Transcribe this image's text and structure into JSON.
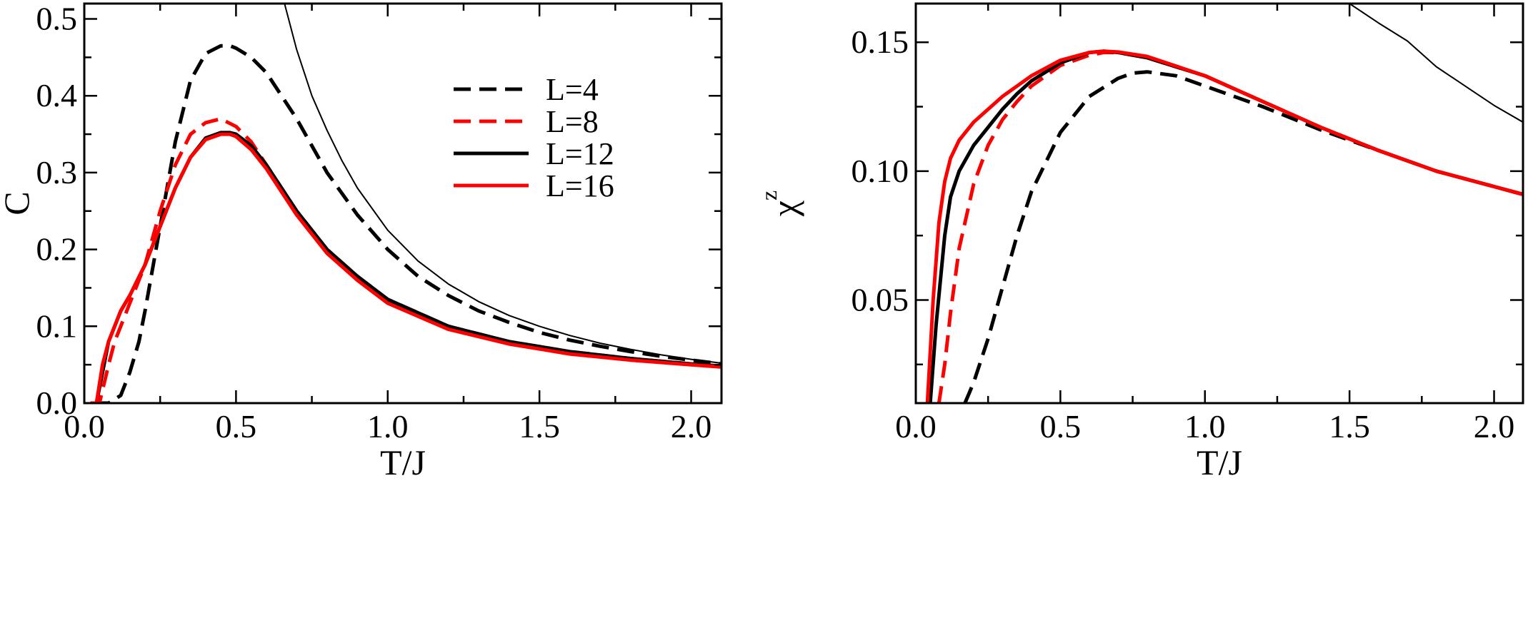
{
  "chart_data": [
    {
      "type": "line",
      "xlabel": "T/J",
      "ylabel": "C",
      "xlim": [
        0,
        2.1
      ],
      "ylim": [
        0,
        0.52
      ],
      "xticks": [
        "0.0",
        "0.5",
        "1.0",
        "1.5",
        "2.0"
      ],
      "yticks": [
        "0.0",
        "0.1",
        "0.2",
        "0.3",
        "0.4",
        "0.5"
      ],
      "grid": false,
      "legend_position": "top-right",
      "series": [
        {
          "name": "L=4",
          "color": "#000000",
          "style": "dashed",
          "x": [
            0.03,
            0.08,
            0.12,
            0.15,
            0.18,
            0.2,
            0.25,
            0.3,
            0.35,
            0.4,
            0.45,
            0.48,
            0.5,
            0.55,
            0.6,
            0.7,
            0.8,
            0.9,
            1.0,
            1.1,
            1.2,
            1.3,
            1.4,
            1.5,
            1.6,
            1.7,
            1.8,
            1.9,
            2.0,
            2.1
          ],
          "y": [
            0.0,
            0.0,
            0.01,
            0.04,
            0.08,
            0.12,
            0.23,
            0.34,
            0.42,
            0.455,
            0.465,
            0.465,
            0.462,
            0.45,
            0.43,
            0.37,
            0.3,
            0.245,
            0.2,
            0.165,
            0.14,
            0.12,
            0.105,
            0.092,
            0.082,
            0.074,
            0.067,
            0.061,
            0.056,
            0.051
          ]
        },
        {
          "name": "L=8",
          "color": "#ff0000",
          "style": "dashed",
          "x": [
            0.02,
            0.05,
            0.08,
            0.1,
            0.12,
            0.15,
            0.2,
            0.25,
            0.3,
            0.35,
            0.4,
            0.45,
            0.5,
            0.55,
            0.6,
            0.7,
            0.8,
            0.9,
            1.0,
            1.2,
            1.4,
            1.6,
            1.8,
            2.0,
            2.1
          ],
          "y": [
            0.0,
            0.0,
            0.05,
            0.08,
            0.1,
            0.13,
            0.18,
            0.25,
            0.31,
            0.35,
            0.365,
            0.37,
            0.36,
            0.34,
            0.31,
            0.25,
            0.2,
            0.165,
            0.135,
            0.1,
            0.08,
            0.067,
            0.058,
            0.051,
            0.048
          ]
        },
        {
          "name": "L=12",
          "color": "#000000",
          "style": "solid",
          "x": [
            0.02,
            0.04,
            0.06,
            0.08,
            0.1,
            0.12,
            0.15,
            0.2,
            0.25,
            0.3,
            0.35,
            0.4,
            0.45,
            0.48,
            0.5,
            0.55,
            0.6,
            0.7,
            0.8,
            0.9,
            1.0,
            1.2,
            1.4,
            1.6,
            1.8,
            2.0,
            2.1
          ],
          "y": [
            0.0,
            0.0,
            0.04,
            0.08,
            0.1,
            0.12,
            0.14,
            0.18,
            0.23,
            0.28,
            0.32,
            0.345,
            0.352,
            0.352,
            0.35,
            0.335,
            0.31,
            0.25,
            0.2,
            0.165,
            0.135,
            0.1,
            0.08,
            0.067,
            0.058,
            0.051,
            0.048
          ]
        },
        {
          "name": "L=16",
          "color": "#ff0000",
          "style": "solid",
          "x": [
            0.02,
            0.04,
            0.06,
            0.08,
            0.1,
            0.12,
            0.15,
            0.2,
            0.25,
            0.3,
            0.35,
            0.4,
            0.45,
            0.48,
            0.5,
            0.55,
            0.6,
            0.7,
            0.8,
            0.9,
            1.0,
            1.2,
            1.4,
            1.6,
            1.8,
            2.0,
            2.1
          ],
          "y": [
            0.0,
            0.0,
            0.05,
            0.08,
            0.1,
            0.12,
            0.14,
            0.18,
            0.23,
            0.28,
            0.32,
            0.343,
            0.35,
            0.35,
            0.347,
            0.33,
            0.305,
            0.245,
            0.195,
            0.16,
            0.13,
            0.096,
            0.077,
            0.064,
            0.056,
            0.05,
            0.047
          ]
        },
        {
          "name": "",
          "color": "#000000",
          "style": "thin",
          "x": [
            0.66,
            0.7,
            0.75,
            0.8,
            0.85,
            0.9,
            1.0,
            1.1,
            1.2,
            1.3,
            1.4,
            1.5,
            1.6,
            1.7,
            1.8,
            1.9,
            2.0,
            2.1
          ],
          "y": [
            0.52,
            0.46,
            0.4,
            0.355,
            0.315,
            0.28,
            0.225,
            0.185,
            0.155,
            0.132,
            0.114,
            0.1,
            0.088,
            0.078,
            0.07,
            0.063,
            0.057,
            0.052
          ]
        }
      ]
    },
    {
      "type": "line",
      "xlabel": "T/J",
      "ylabel": "χ",
      "ylabel_superscript": "z",
      "xlim": [
        0,
        2.1
      ],
      "ylim": [
        0.01,
        0.165
      ],
      "xticks": [
        "0.0",
        "0.5",
        "1.0",
        "1.5",
        "2.0"
      ],
      "yticks": [
        "0.05",
        "0.10",
        "0.15"
      ],
      "grid": false,
      "series": [
        {
          "name": "L=4",
          "color": "#000000",
          "style": "dashed",
          "x": [
            0.17,
            0.2,
            0.25,
            0.3,
            0.35,
            0.4,
            0.5,
            0.6,
            0.7,
            0.75,
            0.8,
            0.9,
            1.0,
            1.2,
            1.4,
            1.6,
            1.8,
            2.0,
            2.1
          ],
          "y": [
            0.01,
            0.018,
            0.035,
            0.055,
            0.075,
            0.092,
            0.115,
            0.129,
            0.136,
            0.138,
            0.1385,
            0.137,
            0.133,
            0.125,
            0.116,
            0.108,
            0.1,
            0.094,
            0.091
          ]
        },
        {
          "name": "L=8",
          "color": "#ff0000",
          "style": "dashed",
          "x": [
            0.08,
            0.1,
            0.12,
            0.15,
            0.2,
            0.25,
            0.3,
            0.35,
            0.4,
            0.5,
            0.6,
            0.65,
            0.7,
            0.8,
            1.0,
            1.2,
            1.4,
            1.6,
            1.8,
            2.0,
            2.1
          ],
          "y": [
            0.01,
            0.025,
            0.045,
            0.07,
            0.095,
            0.11,
            0.12,
            0.127,
            0.133,
            0.141,
            0.145,
            0.146,
            0.146,
            0.144,
            0.137,
            0.127,
            0.117,
            0.108,
            0.1,
            0.094,
            0.091
          ]
        },
        {
          "name": "L=12",
          "color": "#000000",
          "style": "solid",
          "x": [
            0.05,
            0.07,
            0.1,
            0.12,
            0.15,
            0.2,
            0.25,
            0.3,
            0.35,
            0.4,
            0.5,
            0.6,
            0.65,
            0.7,
            0.8,
            1.0,
            1.2,
            1.4,
            1.6,
            1.8,
            2.0,
            2.1
          ],
          "y": [
            0.01,
            0.04,
            0.075,
            0.09,
            0.1,
            0.11,
            0.117,
            0.124,
            0.13,
            0.135,
            0.142,
            0.146,
            0.1465,
            0.146,
            0.144,
            0.137,
            0.127,
            0.117,
            0.108,
            0.1,
            0.094,
            0.091
          ]
        },
        {
          "name": "L=16",
          "color": "#ff0000",
          "style": "solid",
          "x": [
            0.04,
            0.06,
            0.08,
            0.1,
            0.12,
            0.15,
            0.2,
            0.25,
            0.3,
            0.35,
            0.4,
            0.5,
            0.6,
            0.65,
            0.7,
            0.8,
            1.0,
            1.2,
            1.4,
            1.6,
            1.8,
            2.0,
            2.1
          ],
          "y": [
            0.01,
            0.05,
            0.08,
            0.096,
            0.105,
            0.112,
            0.119,
            0.124,
            0.129,
            0.133,
            0.137,
            0.143,
            0.146,
            0.1465,
            0.1462,
            0.1445,
            0.137,
            0.127,
            0.117,
            0.108,
            0.1,
            0.094,
            0.091
          ]
        },
        {
          "name": "",
          "color": "#000000",
          "style": "thin",
          "x": [
            1.5,
            1.6,
            1.7,
            1.8,
            1.9,
            2.0,
            2.1
          ],
          "y": [
            0.165,
            0.1575,
            0.1505,
            0.1405,
            0.133,
            0.1255,
            0.119
          ]
        }
      ]
    }
  ]
}
